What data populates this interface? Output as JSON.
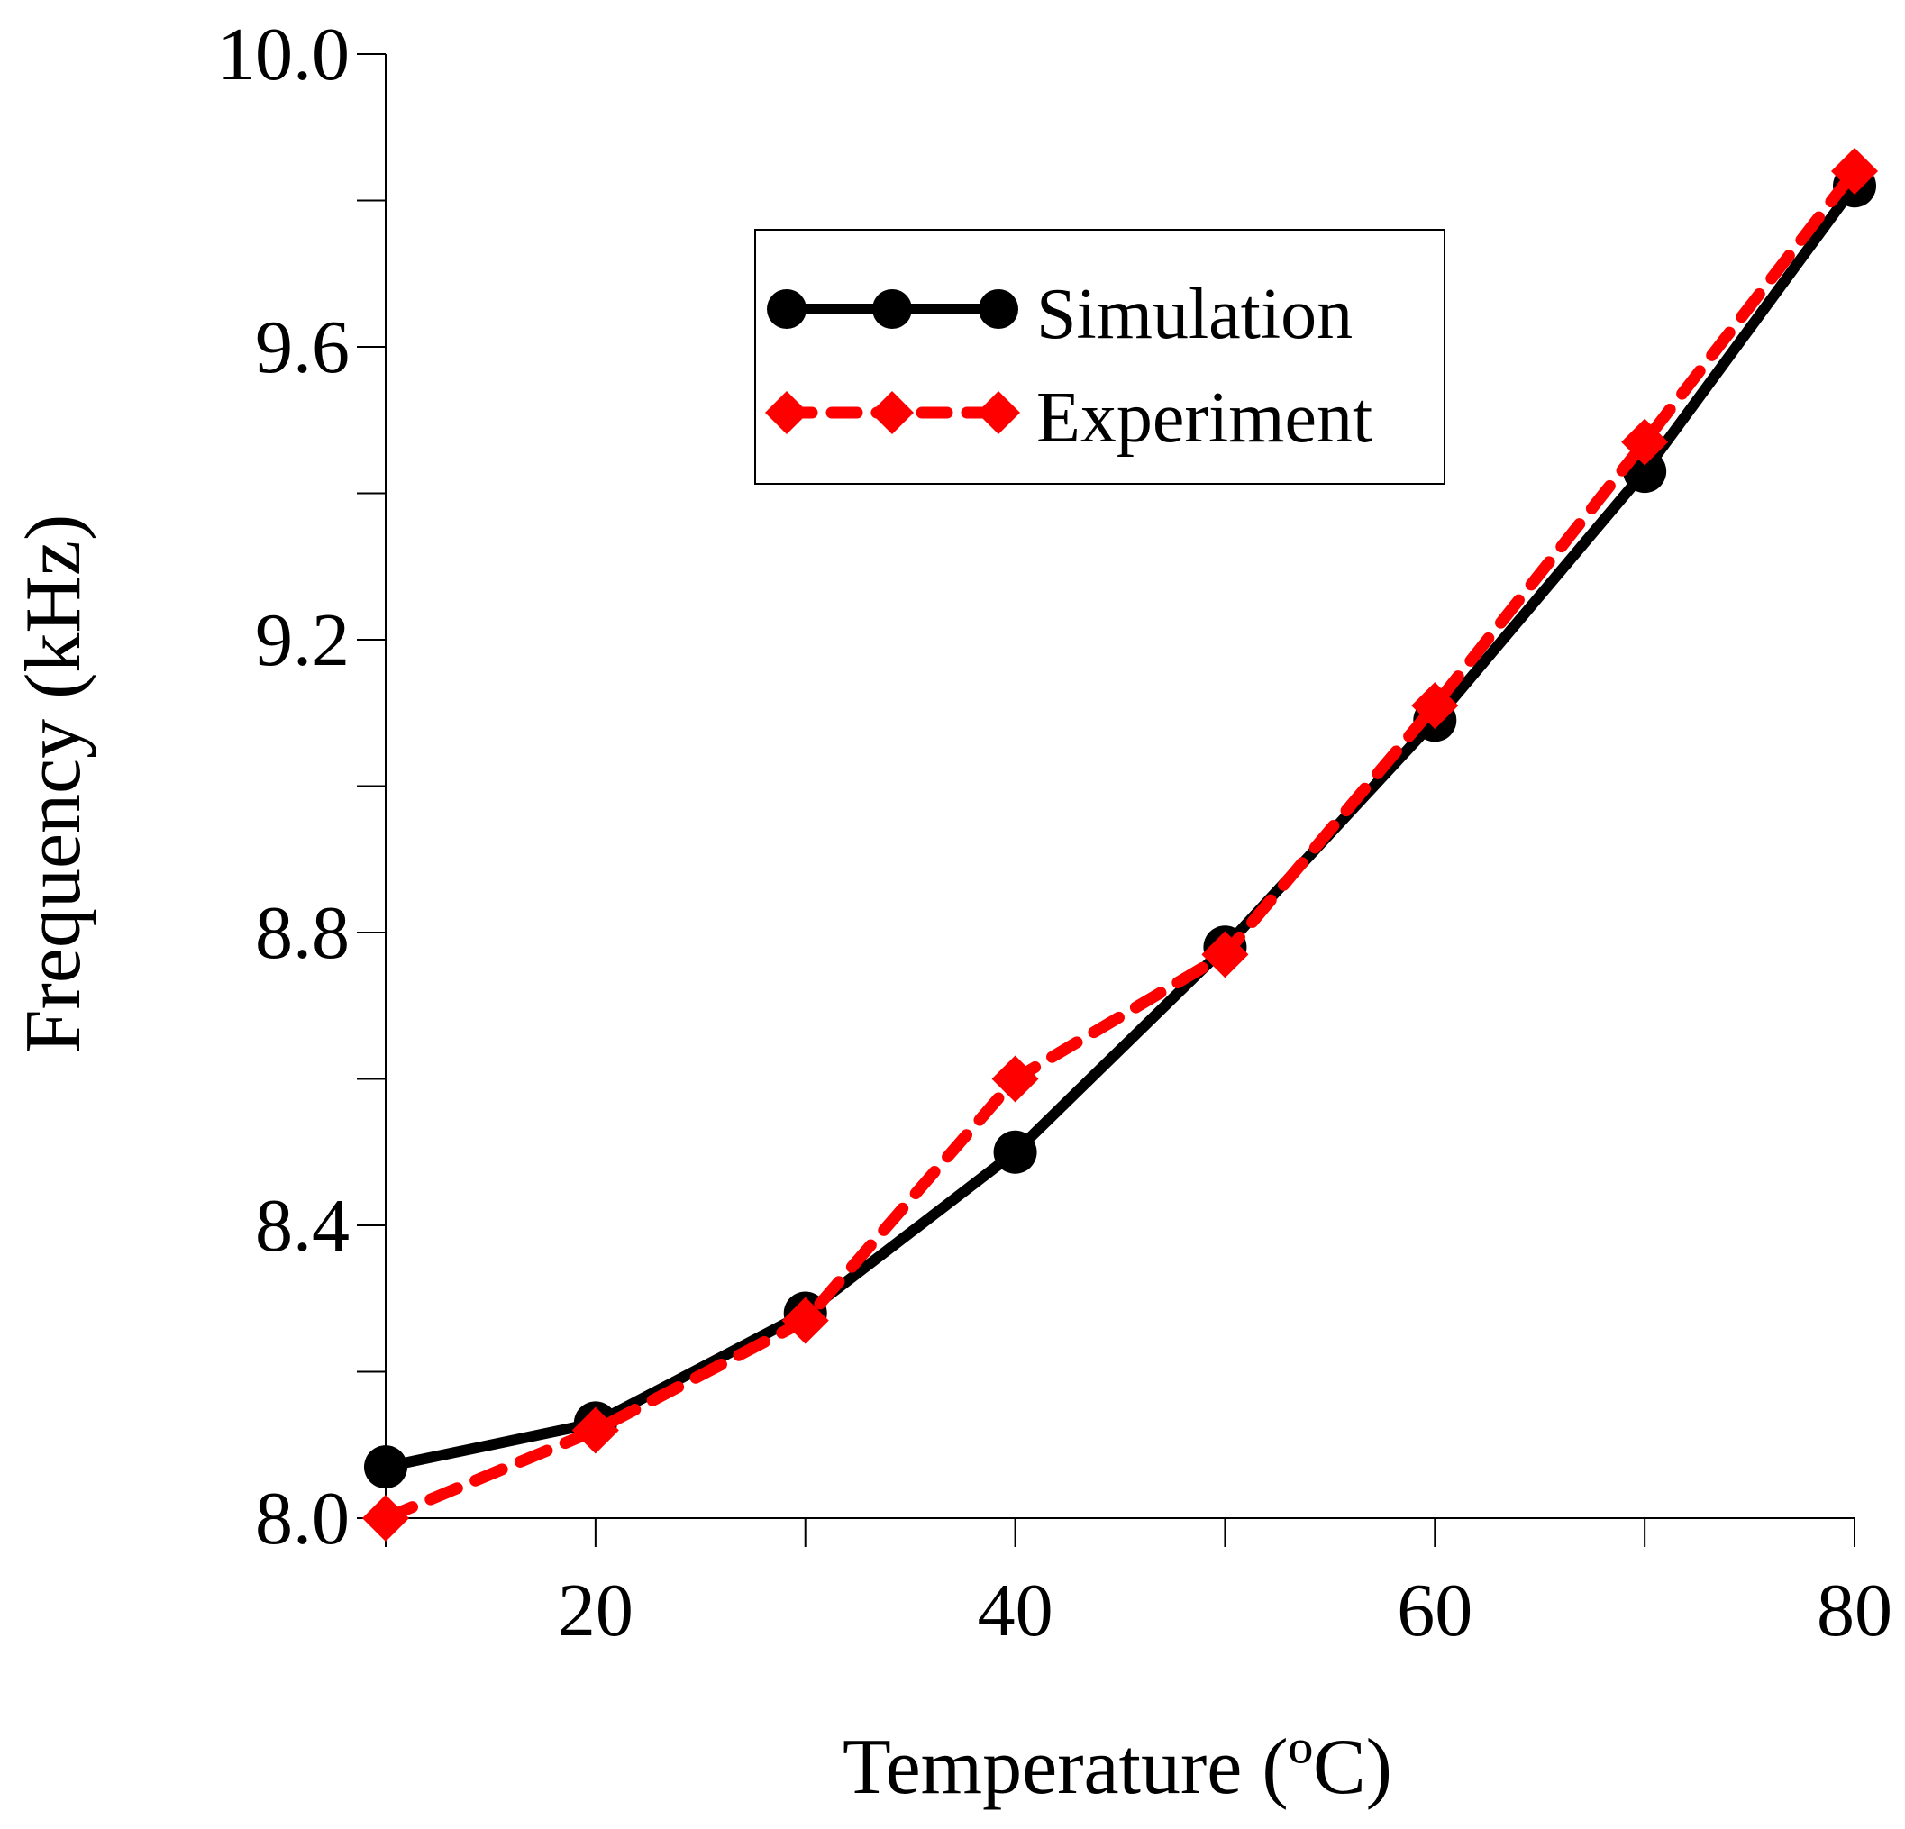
{
  "chart_data": {
    "type": "line",
    "title": "",
    "xlabel": "Temperature (ºC)",
    "ylabel": "Frequency (kHz)",
    "xlim": [
      10,
      80
    ],
    "ylim": [
      8.0,
      10.0
    ],
    "x_ticks": [
      20,
      40,
      60,
      80
    ],
    "x_tick_labels": [
      "20",
      "40",
      "60",
      "80"
    ],
    "x_minor_ticks": [
      10,
      20,
      30,
      40,
      50,
      60,
      70,
      80
    ],
    "y_ticks": [
      8.0,
      8.4,
      8.8,
      9.2,
      9.6,
      10.0
    ],
    "y_tick_labels": [
      "8.0",
      "8.4",
      "8.8",
      "9.2",
      "9.6",
      "10.0"
    ],
    "y_minor_ticks": [
      8.2,
      8.6,
      9.0,
      9.4,
      9.8
    ],
    "grid": false,
    "legend_position": "top-center",
    "x": [
      10,
      20,
      30,
      40,
      50,
      60,
      70,
      80
    ],
    "series": [
      {
        "name": "Simulation",
        "values": [
          8.07,
          8.13,
          8.28,
          8.5,
          8.78,
          9.09,
          9.43,
          9.82
        ],
        "color": "#000000",
        "marker": "circle",
        "line_style": "solid"
      },
      {
        "name": "Experiment",
        "values": [
          8.0,
          8.12,
          8.27,
          8.6,
          8.77,
          9.11,
          9.47,
          9.84
        ],
        "color": "#ff0000",
        "marker": "diamond",
        "line_style": "dashed"
      }
    ]
  }
}
